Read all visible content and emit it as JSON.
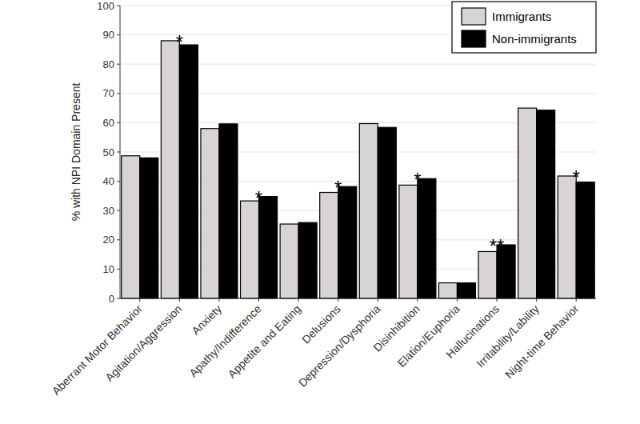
{
  "chart_data": {
    "type": "bar",
    "y_label": "% with NPI Domain Present",
    "categories": [
      "Aberrant Motor Behavior",
      "Agitation/Aggression",
      "Anxiety",
      "Apathy/Indifference",
      "Appetite and Eating",
      "Delusions",
      "Depression/Dysphoria",
      "Disinhibition",
      "Elation/Euphoria",
      "Hallucinations",
      "Irritability/Lability",
      "Night-time Behavior"
    ],
    "series": [
      {
        "name": "Immigrants",
        "color": "#d9d4d4",
        "values": [
          48.7,
          88.0,
          58.0,
          33.3,
          25.4,
          36.2,
          59.7,
          38.7,
          5.3,
          16.0,
          65.0,
          41.8
        ]
      },
      {
        "name": "Non-immigrants",
        "color": "#000000",
        "values": [
          48.0,
          86.6,
          59.6,
          34.8,
          25.9,
          38.2,
          58.4,
          40.9,
          5.3,
          18.3,
          64.3,
          39.7
        ]
      }
    ],
    "annotations": [
      {
        "category": "Agitation/Aggression",
        "text": "*"
      },
      {
        "category": "Apathy/Indifference",
        "text": "*"
      },
      {
        "category": "Delusions",
        "text": "*"
      },
      {
        "category": "Disinhibition",
        "text": "*"
      },
      {
        "category": "Hallucinations",
        "text": "**"
      },
      {
        "category": "Night-time Behavior",
        "text": "*"
      }
    ],
    "ylim": [
      0,
      100
    ],
    "yticks": [
      0,
      10,
      20,
      30,
      40,
      50,
      60,
      70,
      80,
      90,
      100
    ],
    "grid": true,
    "legend": "top-right"
  }
}
